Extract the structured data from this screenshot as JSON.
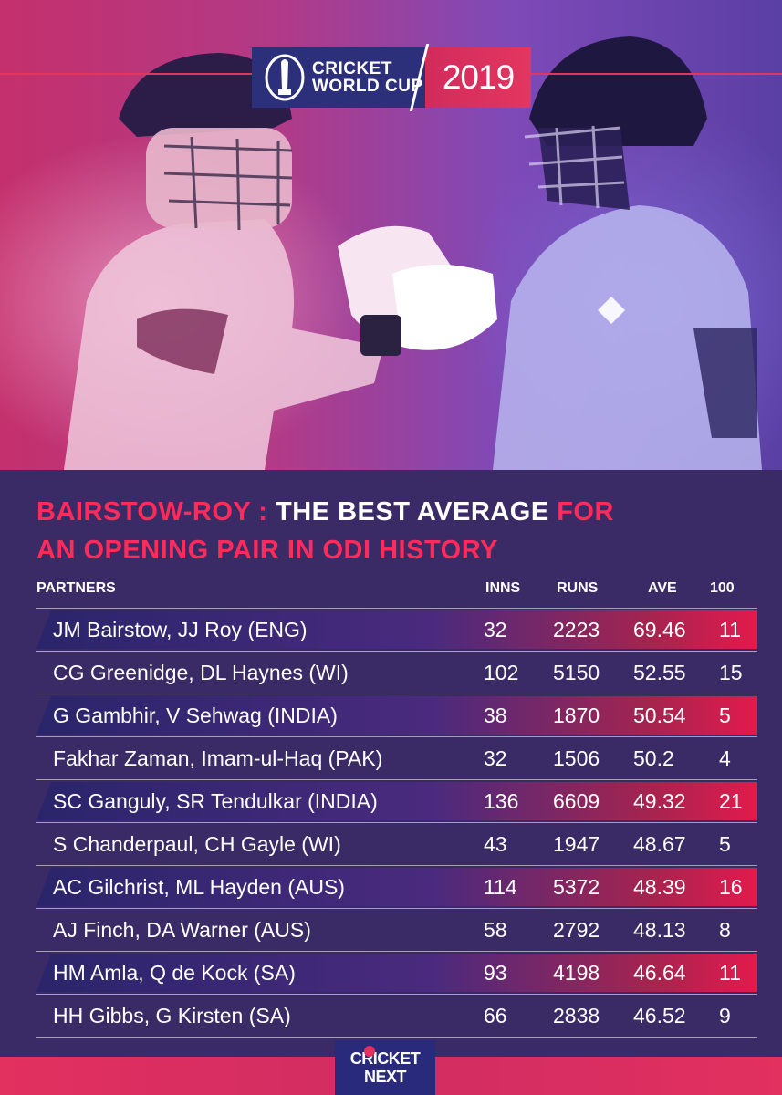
{
  "header": {
    "logo_line1": "CRICKET",
    "logo_line2": "WORLD CUP",
    "logo_year": "2019"
  },
  "title": {
    "part1": "BAIRSTOW-ROY : ",
    "part2": "THE BEST AVERAGE ",
    "part3": "FOR",
    "line2": "AN OPENING PAIR IN ODI HISTORY"
  },
  "table": {
    "headers": {
      "partners": "PARTNERS",
      "inns": "INNS",
      "runs": "RUNS",
      "ave": "AVE",
      "hundreds": "100"
    },
    "rows": [
      {
        "partners": "JM Bairstow, JJ Roy (ENG)",
        "inns": "32",
        "runs": "2223",
        "ave": "69.46",
        "hundreds": "11"
      },
      {
        "partners": "CG Greenidge, DL Haynes (WI)",
        "inns": "102",
        "runs": "5150",
        "ave": "52.55",
        "hundreds": "15"
      },
      {
        "partners": "G Gambhir, V Sehwag (INDIA)",
        "inns": "38",
        "runs": "1870",
        "ave": "50.54",
        "hundreds": "5"
      },
      {
        "partners": "Fakhar Zaman, Imam-ul-Haq (PAK)",
        "inns": "32",
        "runs": "1506",
        "ave": "50.2",
        "hundreds": "4"
      },
      {
        "partners": "SC Ganguly, SR Tendulkar (INDIA)",
        "inns": "136",
        "runs": "6609",
        "ave": "49.32",
        "hundreds": "21"
      },
      {
        "partners": "S Chanderpaul, CH Gayle (WI)",
        "inns": "43",
        "runs": "1947",
        "ave": "48.67",
        "hundreds": "5"
      },
      {
        "partners": "AC Gilchrist, ML Hayden (AUS)",
        "inns": "114",
        "runs": "5372",
        "ave": "48.39",
        "hundreds": "16"
      },
      {
        "partners": "AJ Finch, DA Warner (AUS)",
        "inns": "58",
        "runs": "2792",
        "ave": "48.13",
        "hundreds": "8"
      },
      {
        "partners": "HM Amla, Q de Kock (SA)",
        "inns": "93",
        "runs": "4198",
        "ave": "46.64",
        "hundreds": "11"
      },
      {
        "partners": "HH Gibbs, G Kirsten (SA)",
        "inns": "66",
        "runs": "2838",
        "ave": "46.52",
        "hundreds": "9"
      }
    ]
  },
  "footer": {
    "brand_line1": "CRICKET",
    "brand_line2": "NEXT"
  },
  "colors": {
    "accent": "#ff2b5b",
    "navy": "#2a2a7c",
    "background": "#3a2a66"
  }
}
